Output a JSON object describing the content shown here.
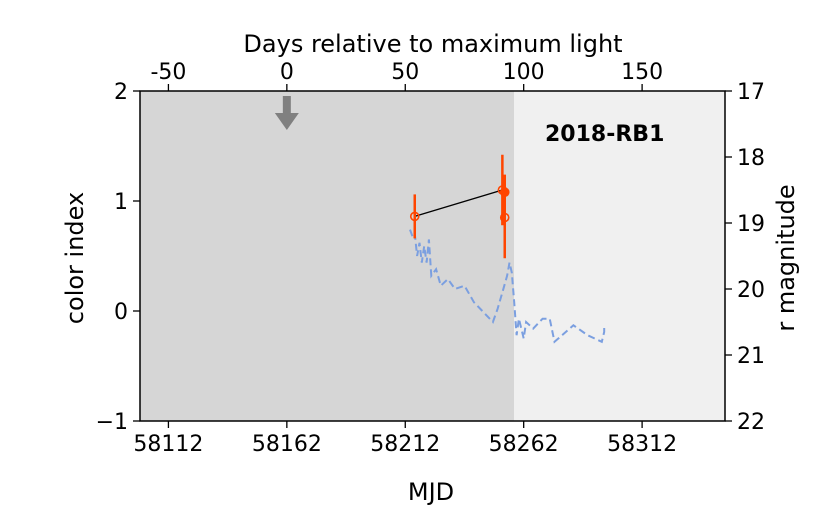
{
  "chart_data": {
    "type": "scatter",
    "annotation": "2018-RB1",
    "xlabel": "MJD",
    "ylabel": "color index",
    "top_xlabel": "Days relative to maximum light",
    "right_ylabel": "r magnitude",
    "xlim": [
      58100,
      58347
    ],
    "ylim": [
      -1,
      2
    ],
    "right_ylim": [
      22,
      17
    ],
    "top_xlim": [
      -62,
      185
    ],
    "x_ticks": [
      "58112",
      "58162",
      "58212",
      "58262",
      "58312"
    ],
    "y_ticks": [
      "−1",
      "0",
      "1",
      "2"
    ],
    "top_ticks": [
      "-50",
      "0",
      "50",
      "100",
      "150"
    ],
    "right_ticks": [
      "17",
      "18",
      "19",
      "20",
      "21",
      "22"
    ],
    "shaded_region_end_mjd": 58258,
    "max_light_mjd": 58162,
    "grid": false,
    "colors": {
      "shade_dark": "#d6d6d6",
      "shade_light": "#f0f0f0",
      "color_points": "#ff4500",
      "magnitude_curve": "#7b9fe0",
      "arrow": "#808080"
    },
    "series": [
      {
        "style": "color-index-points-with-errors",
        "points": [
          {
            "x": 58216,
            "y": 0.86,
            "err": 0.2,
            "open": true
          },
          {
            "x": 58253,
            "y": 1.1,
            "err": 0.32,
            "open": true
          },
          {
            "x": 58254,
            "y": 1.08,
            "err": 0.16,
            "open": false
          },
          {
            "x": 58254,
            "y": 0.85,
            "err": 0.37,
            "open": true
          }
        ]
      },
      {
        "style": "r-magnitude-dashed",
        "axis": "right",
        "points": [
          [
            58214,
            19.1
          ],
          [
            58215,
            19.2
          ],
          [
            58216,
            19.15
          ],
          [
            58217,
            19.5
          ],
          [
            58218,
            19.3
          ],
          [
            58219,
            19.6
          ],
          [
            58220,
            19.35
          ],
          [
            58221,
            19.6
          ],
          [
            58222,
            19.25
          ],
          [
            58223,
            19.8
          ],
          [
            58225,
            19.7
          ],
          [
            58227,
            19.95
          ],
          [
            58230,
            19.85
          ],
          [
            58233,
            20.0
          ],
          [
            58237,
            19.95
          ],
          [
            58241,
            20.2
          ],
          [
            58245,
            20.35
          ],
          [
            58249,
            20.5
          ],
          [
            58251,
            20.3
          ],
          [
            58253,
            20.05
          ],
          [
            58255,
            19.8
          ],
          [
            58256,
            19.6
          ],
          [
            58257,
            19.75
          ],
          [
            58258,
            20.2
          ],
          [
            58259,
            20.7
          ],
          [
            58260,
            20.45
          ],
          [
            58261,
            20.6
          ],
          [
            58262,
            20.75
          ],
          [
            58263,
            20.5
          ],
          [
            58266,
            20.6
          ],
          [
            58270,
            20.45
          ],
          [
            58273,
            20.45
          ],
          [
            58275,
            20.8
          ],
          [
            58283,
            20.55
          ],
          [
            58289,
            20.7
          ],
          [
            58295,
            20.8
          ],
          [
            58296,
            20.65
          ],
          [
            58296,
            20.55
          ]
        ]
      }
    ]
  }
}
